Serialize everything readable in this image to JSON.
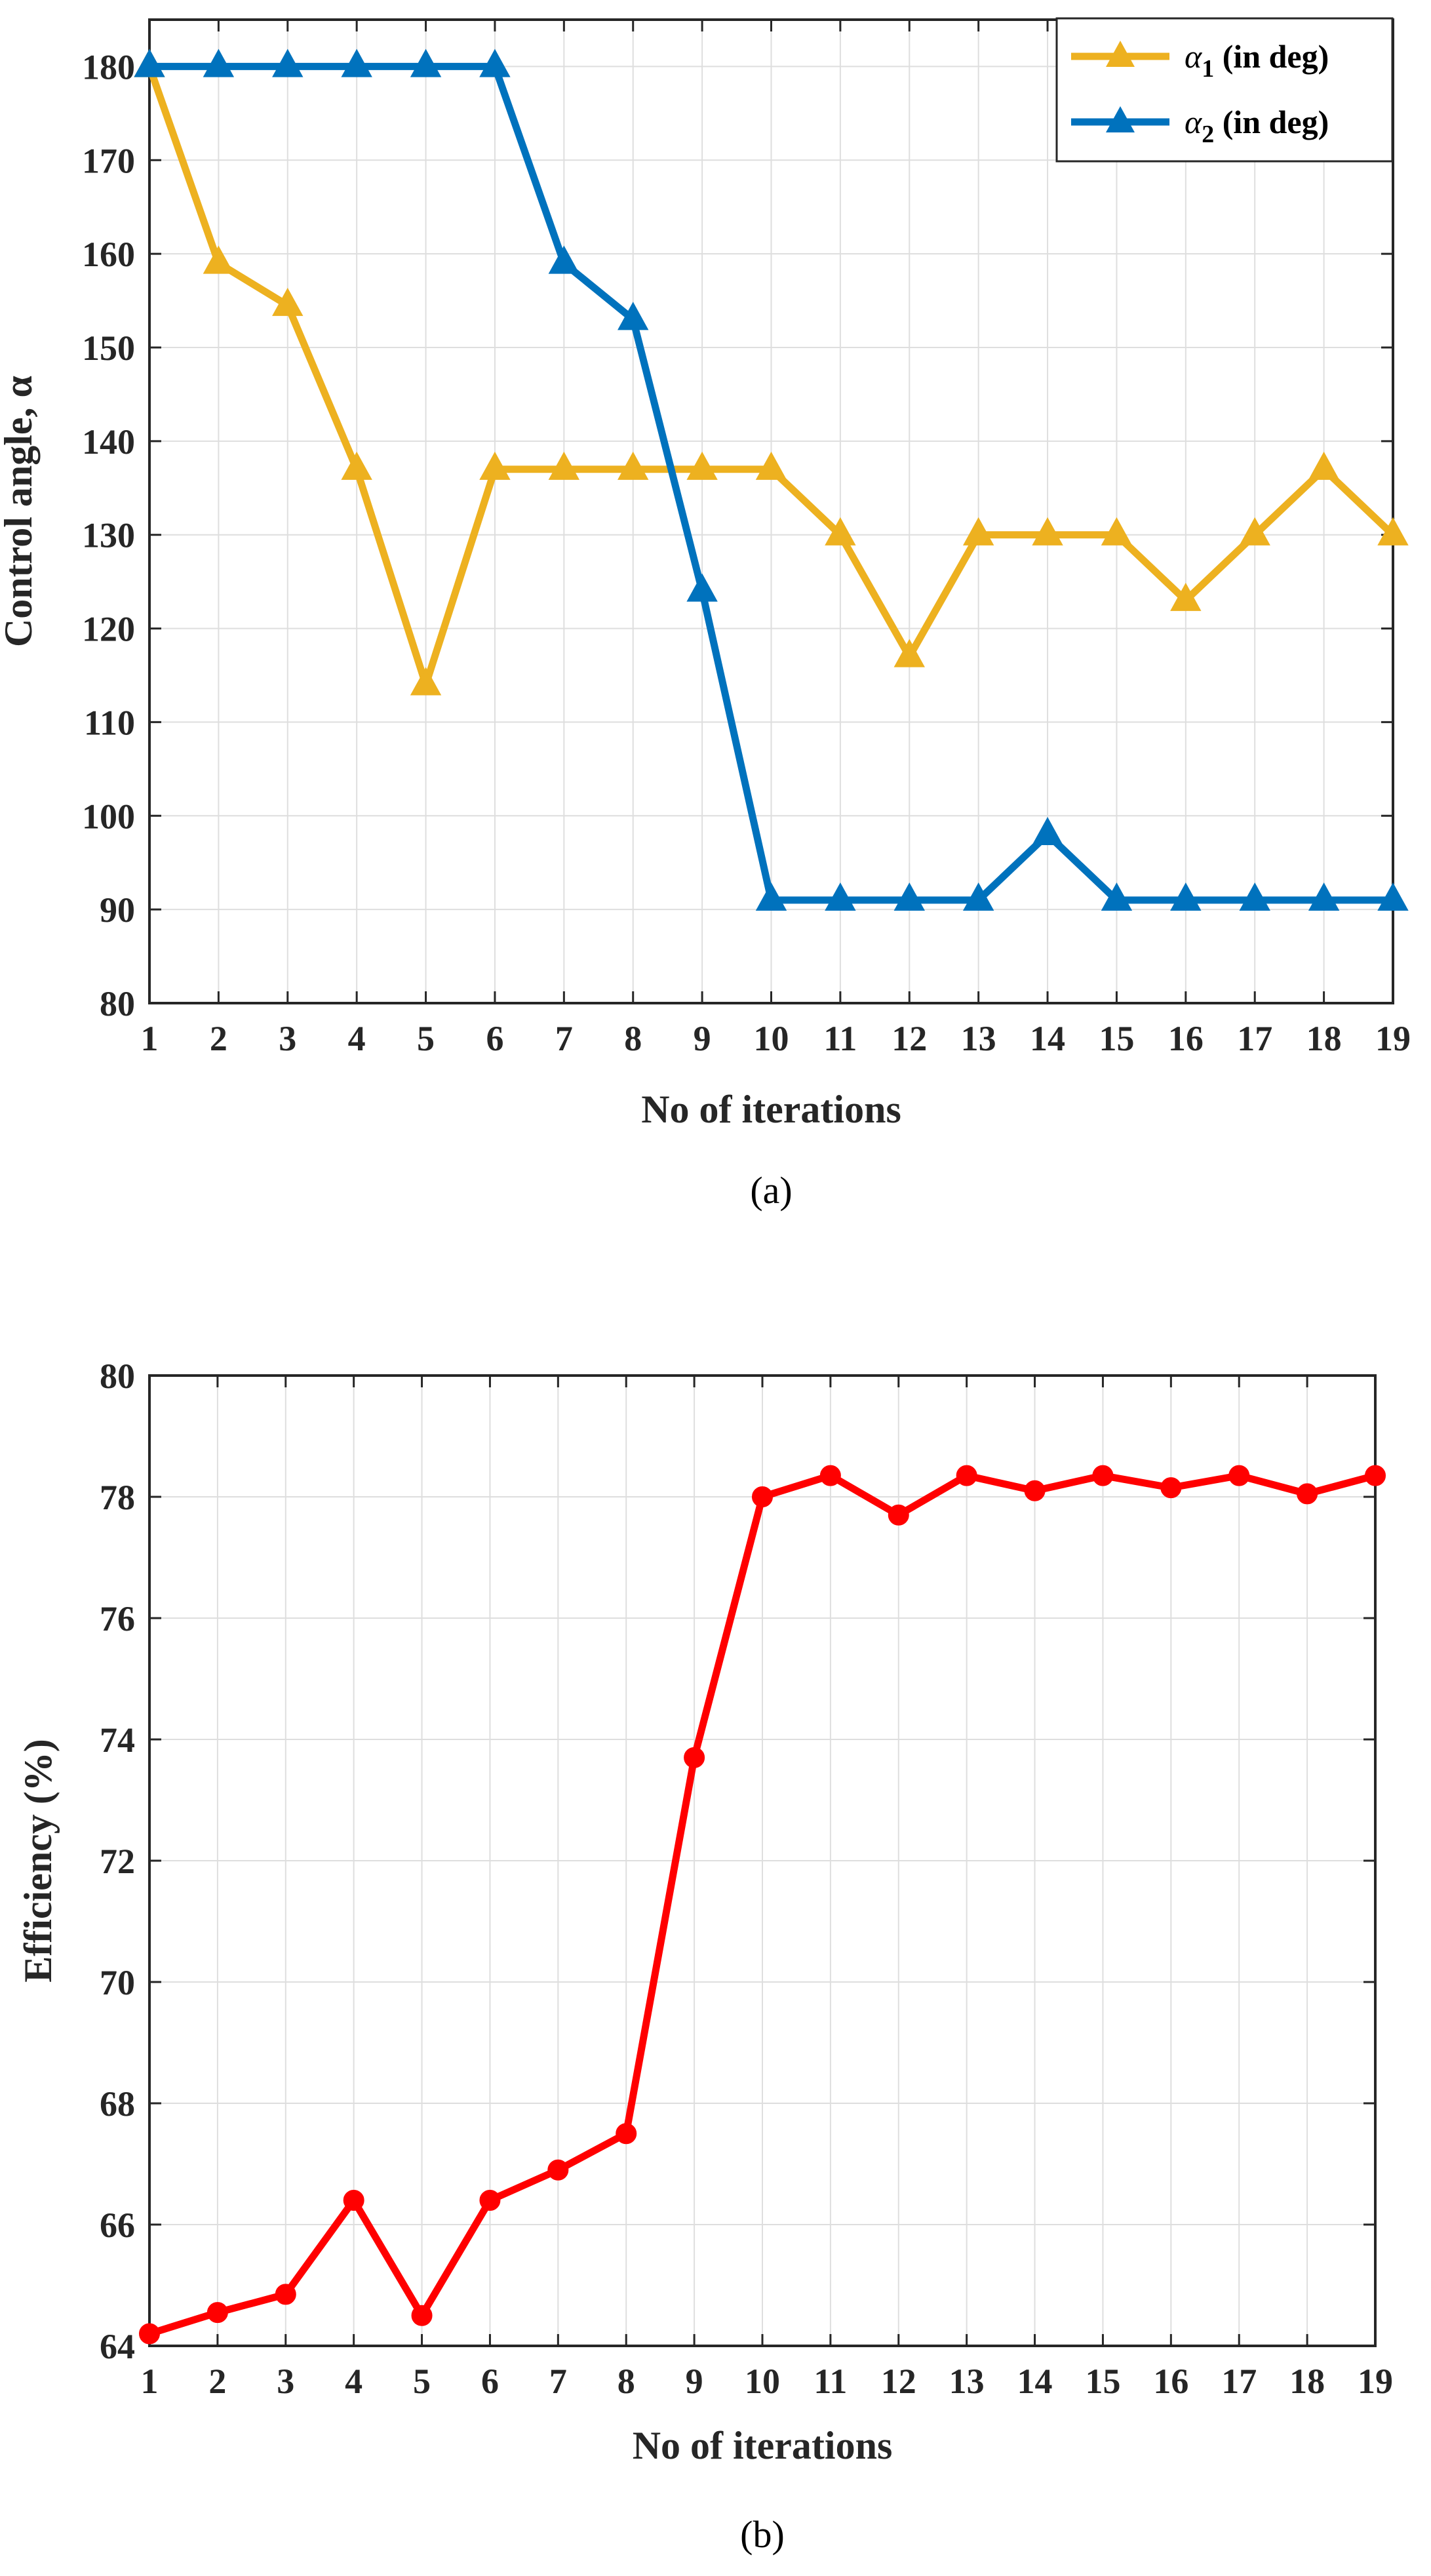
{
  "chart_data": [
    {
      "type": "line",
      "caption": "(a)",
      "xlabel": "No of iterations",
      "ylabel": "Control angle, α",
      "xlim": [
        1,
        19
      ],
      "ylim": [
        80,
        185
      ],
      "xticks": [
        1,
        2,
        3,
        4,
        5,
        6,
        7,
        8,
        9,
        10,
        11,
        12,
        13,
        14,
        15,
        16,
        17,
        18,
        19
      ],
      "yticks": [
        80,
        90,
        100,
        110,
        120,
        130,
        140,
        150,
        160,
        170,
        180
      ],
      "grid": true,
      "legend_position": "top-right",
      "x": [
        1,
        2,
        3,
        4,
        5,
        6,
        7,
        8,
        9,
        10,
        11,
        12,
        13,
        14,
        15,
        16,
        17,
        18,
        19
      ],
      "series": [
        {
          "name": "α1 (in deg)",
          "symbol": "α",
          "subscript": "1",
          "suffix": " (in deg)",
          "color": "#EDB120",
          "marker": "triangle",
          "values": [
            180,
            159,
            154.5,
            137,
            114,
            137,
            137,
            137,
            137,
            137,
            130,
            117,
            130,
            130,
            130,
            123,
            130,
            137,
            130
          ]
        },
        {
          "name": "α2 (in deg)",
          "symbol": "α",
          "subscript": "2",
          "suffix": " (in deg)",
          "color": "#0072BD",
          "marker": "triangle",
          "values": [
            180,
            180,
            180,
            180,
            180,
            180,
            159,
            153,
            124,
            91,
            91,
            91,
            91,
            98,
            91,
            91,
            91,
            91,
            91
          ]
        }
      ]
    },
    {
      "type": "line",
      "caption": "(b)",
      "xlabel": "No of iterations",
      "ylabel": "Efficiency (%)",
      "xlim": [
        1,
        19
      ],
      "ylim": [
        64,
        80
      ],
      "xticks": [
        1,
        2,
        3,
        4,
        5,
        6,
        7,
        8,
        9,
        10,
        11,
        12,
        13,
        14,
        15,
        16,
        17,
        18,
        19
      ],
      "yticks": [
        64,
        66,
        68,
        70,
        72,
        74,
        76,
        78,
        80
      ],
      "grid": true,
      "x": [
        1,
        2,
        3,
        4,
        5,
        6,
        7,
        8,
        9,
        10,
        11,
        12,
        13,
        14,
        15,
        16,
        17,
        18,
        19
      ],
      "series": [
        {
          "name": "Efficiency",
          "color": "#FF0000",
          "marker": "circle",
          "values": [
            64.2,
            64.55,
            64.85,
            66.4,
            64.5,
            66.4,
            66.9,
            67.5,
            73.7,
            78.0,
            78.35,
            77.7,
            78.35,
            78.1,
            78.35,
            78.15,
            78.35,
            78.05,
            78.35
          ]
        }
      ]
    }
  ]
}
